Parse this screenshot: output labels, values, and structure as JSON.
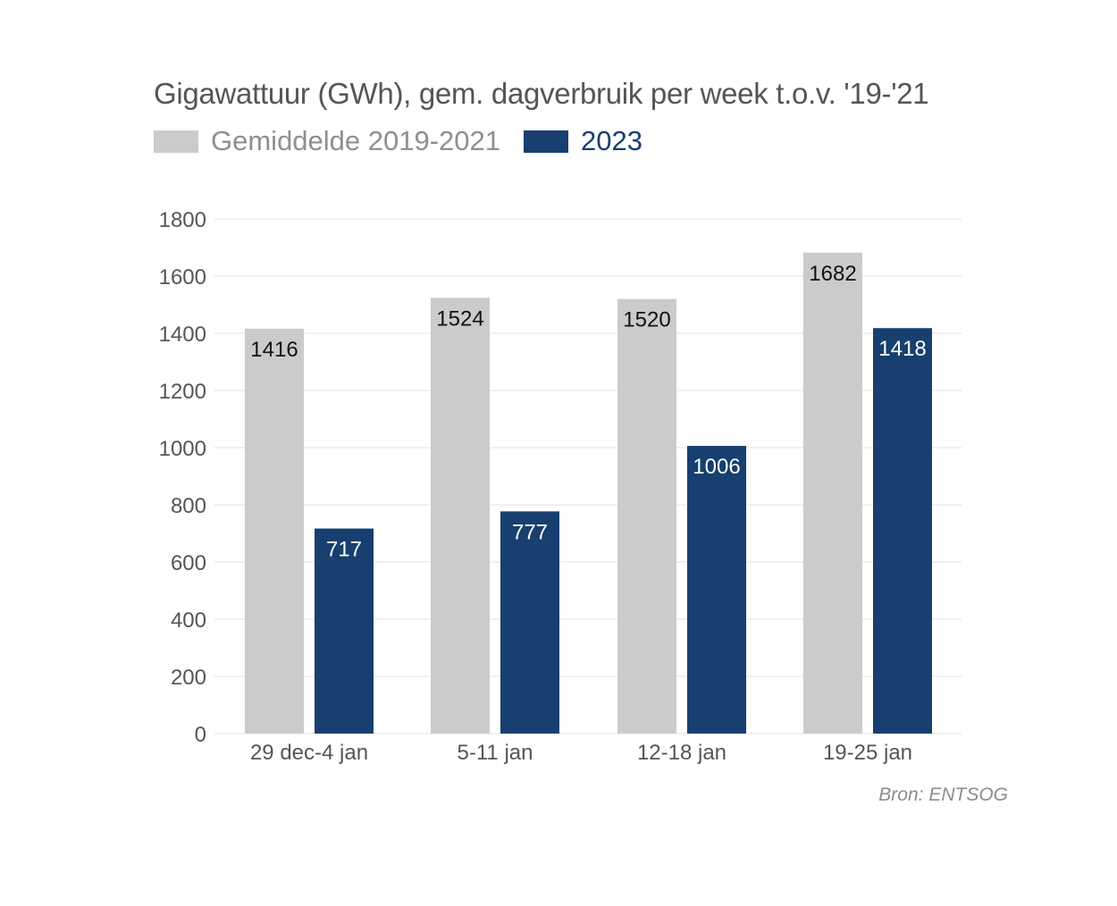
{
  "chart_data": {
    "type": "bar",
    "title": "Gigawattuur (GWh), gem. dagverbruik per week t.o.v. '19-'21",
    "categories": [
      "29 dec-4 jan",
      "5-11 jan",
      "12-18 jan",
      "19-25 jan"
    ],
    "series": [
      {
        "name": "Gemiddelde 2019-2021",
        "color": "#cbcbcb",
        "label_color": "#111111",
        "values": [
          1416,
          1524,
          1520,
          1682
        ]
      },
      {
        "name": "2023",
        "color": "#173f6f",
        "label_color": "#ffffff",
        "values": [
          717,
          777,
          1006,
          1418
        ]
      }
    ],
    "ylim": [
      0,
      1800
    ],
    "yticks": [
      0,
      200,
      400,
      600,
      800,
      1000,
      1200,
      1400,
      1600,
      1800
    ],
    "grid": true,
    "legend_placement": "top-left",
    "source": "Bron: ENTSOG"
  }
}
